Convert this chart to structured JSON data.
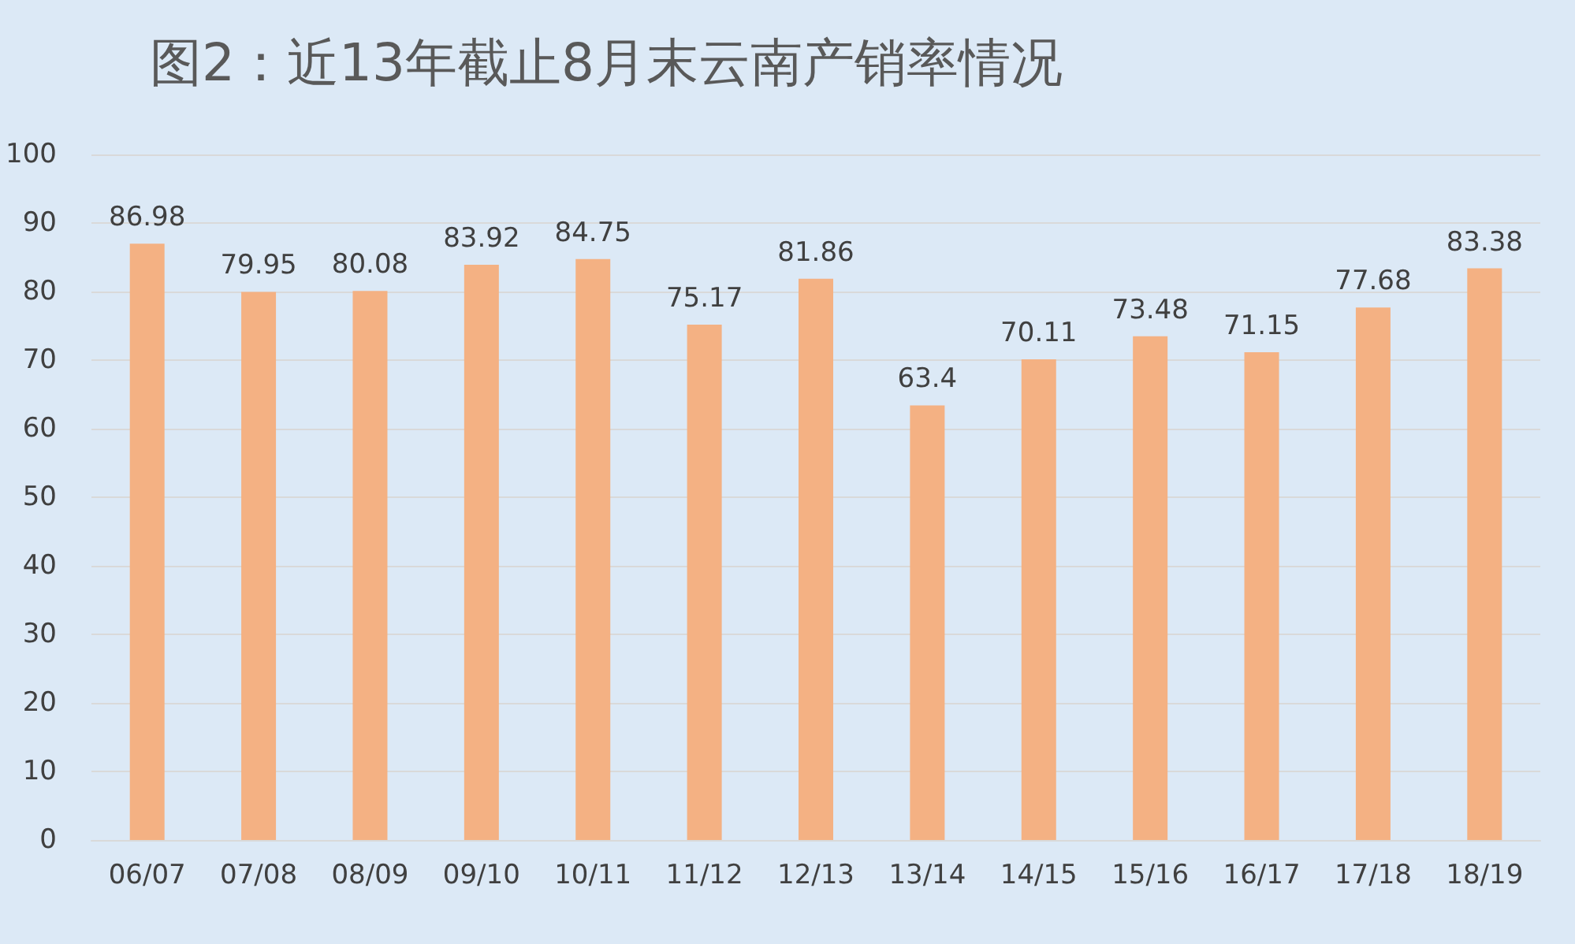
{
  "chart_data": {
    "type": "bar",
    "title": "图2：近13年截止8月末云南产销率情况",
    "categories": [
      "06/07",
      "07/08",
      "08/09",
      "09/10",
      "10/11",
      "11/12",
      "12/13",
      "13/14",
      "14/15",
      "15/16",
      "16/17",
      "17/18",
      "18/19"
    ],
    "values": [
      86.98,
      79.95,
      80.08,
      83.92,
      84.75,
      75.17,
      81.86,
      63.4,
      70.11,
      73.48,
      71.15,
      77.68,
      83.38
    ],
    "color": "#f4b183",
    "ylim": [
      0,
      100
    ],
    "yticks": [
      0,
      10,
      20,
      30,
      40,
      50,
      60,
      70,
      80,
      90,
      100
    ],
    "grid": "y",
    "data_labels": true
  }
}
